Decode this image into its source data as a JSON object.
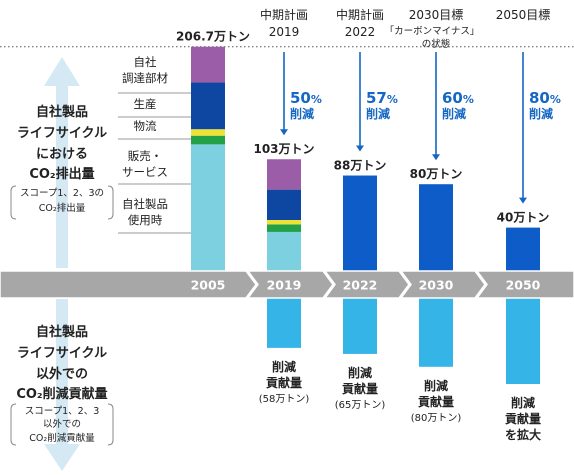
{
  "chart_data": {
    "type": "bar",
    "categories": [
      "2005",
      "2019",
      "2022",
      "2030",
      "2050"
    ],
    "emission_labels": [
      "206.7万トン",
      "103万トン",
      "88万トン",
      "80万トン",
      "40万トン"
    ],
    "emission_values": [
      206.7,
      103,
      88,
      80,
      40
    ],
    "stack_series": [
      {
        "name": "自社調達部材",
        "color": "#9b5da8",
        "values": [
          33,
          28
        ]
      },
      {
        "name": "生産",
        "color": "#0d47a1",
        "values": [
          43,
          28
        ]
      },
      {
        "name": "物流",
        "color": "#ede336",
        "values": [
          6,
          4
        ]
      },
      {
        "name": "販売・サービス",
        "color": "#24a147",
        "values": [
          8,
          7
        ]
      },
      {
        "name": "自社製品使用時",
        "color": "#7dd0df",
        "values": [
          116.7,
          36
        ]
      }
    ],
    "single_bar_color": "#0d5cc8",
    "contribution_bar_color": "#35b4e8",
    "contribution": [
      {
        "category": "2019",
        "title": [
          "削減",
          "貢献量"
        ],
        "value": "(58万トン)",
        "bar_value": 58
      },
      {
        "category": "2022",
        "title": [
          "削減",
          "貢献量"
        ],
        "value": "(65万トン)",
        "bar_value": 65
      },
      {
        "category": "2030",
        "title": [
          "削減",
          "貢献量"
        ],
        "value": "(80万トン)",
        "bar_value": 80
      },
      {
        "category": "2050",
        "title": [
          "削減",
          "貢献量",
          "を拡大"
        ],
        "value": "",
        "bar_value": 100
      }
    ],
    "targets": [
      {
        "category": "2019",
        "header": [
          "中期計画",
          "2019"
        ],
        "pct": "50",
        "unit": "%",
        "word": "削減"
      },
      {
        "category": "2022",
        "header": [
          "中期計画",
          "2022"
        ],
        "pct": "57",
        "unit": "%",
        "word": "削減"
      },
      {
        "category": "2030",
        "header": [
          "2030目標",
          "「カーボンマイナス」",
          "の状態"
        ],
        "pct": "60",
        "unit": "%",
        "word": "削減"
      },
      {
        "category": "2050",
        "header": [
          "2050目標"
        ],
        "pct": "80",
        "unit": "%",
        "word": "削減"
      }
    ],
    "stack_labels": [
      [
        "自社",
        "調達部材"
      ],
      [
        "生産"
      ],
      [
        "物流"
      ],
      [
        "販売・",
        "サービス"
      ],
      [
        "自社製品",
        "使用時"
      ]
    ],
    "upper_title": [
      "自社製品",
      "ライフサイクル",
      "における",
      "CO₂排出量"
    ],
    "upper_note": [
      "スコープ1、2、3の",
      "CO₂排出量"
    ],
    "lower_title": [
      "自社製品",
      "ライフサイクル",
      "以外での",
      "CO₂削減貢献量"
    ],
    "lower_note": [
      "スコープ1、2、3",
      "以外での",
      "CO₂削減貢献量"
    ],
    "colors": {
      "axis_band": "#a7a7a7",
      "target_text": "#1467c5",
      "side_arrow": "#d4e9f4"
    }
  }
}
